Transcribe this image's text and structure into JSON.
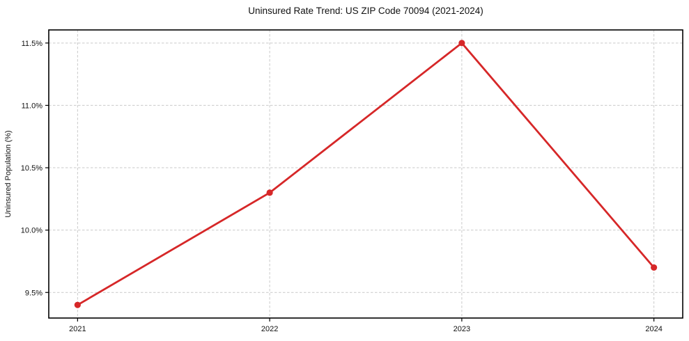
{
  "chart_data": {
    "type": "line",
    "title": "Uninsured Rate Trend: US ZIP Code 70094 (2021-2024)",
    "xlabel": "",
    "ylabel": "Uninsured Population (%)",
    "x": [
      2021,
      2022,
      2023,
      2024
    ],
    "xtick_labels": [
      "2021",
      "2022",
      "2023",
      "2024"
    ],
    "values": [
      9.4,
      10.3,
      11.5,
      9.7
    ],
    "ytick_values": [
      9.5,
      10.0,
      10.5,
      11.0,
      11.5
    ],
    "ytick_labels": [
      "9.5%",
      "10.0%",
      "10.5%",
      "11.0%",
      "11.5%"
    ],
    "xlim": [
      2020.85,
      2024.15
    ],
    "ylim": [
      9.295,
      11.605
    ],
    "grid": true,
    "grid_style": "dashed",
    "legend": false,
    "colors": {
      "line": "#d62728",
      "marker": "#d62728",
      "grid": "#c9c9c9",
      "axis": "#000000",
      "text": "#111111",
      "background": "#ffffff"
    }
  }
}
